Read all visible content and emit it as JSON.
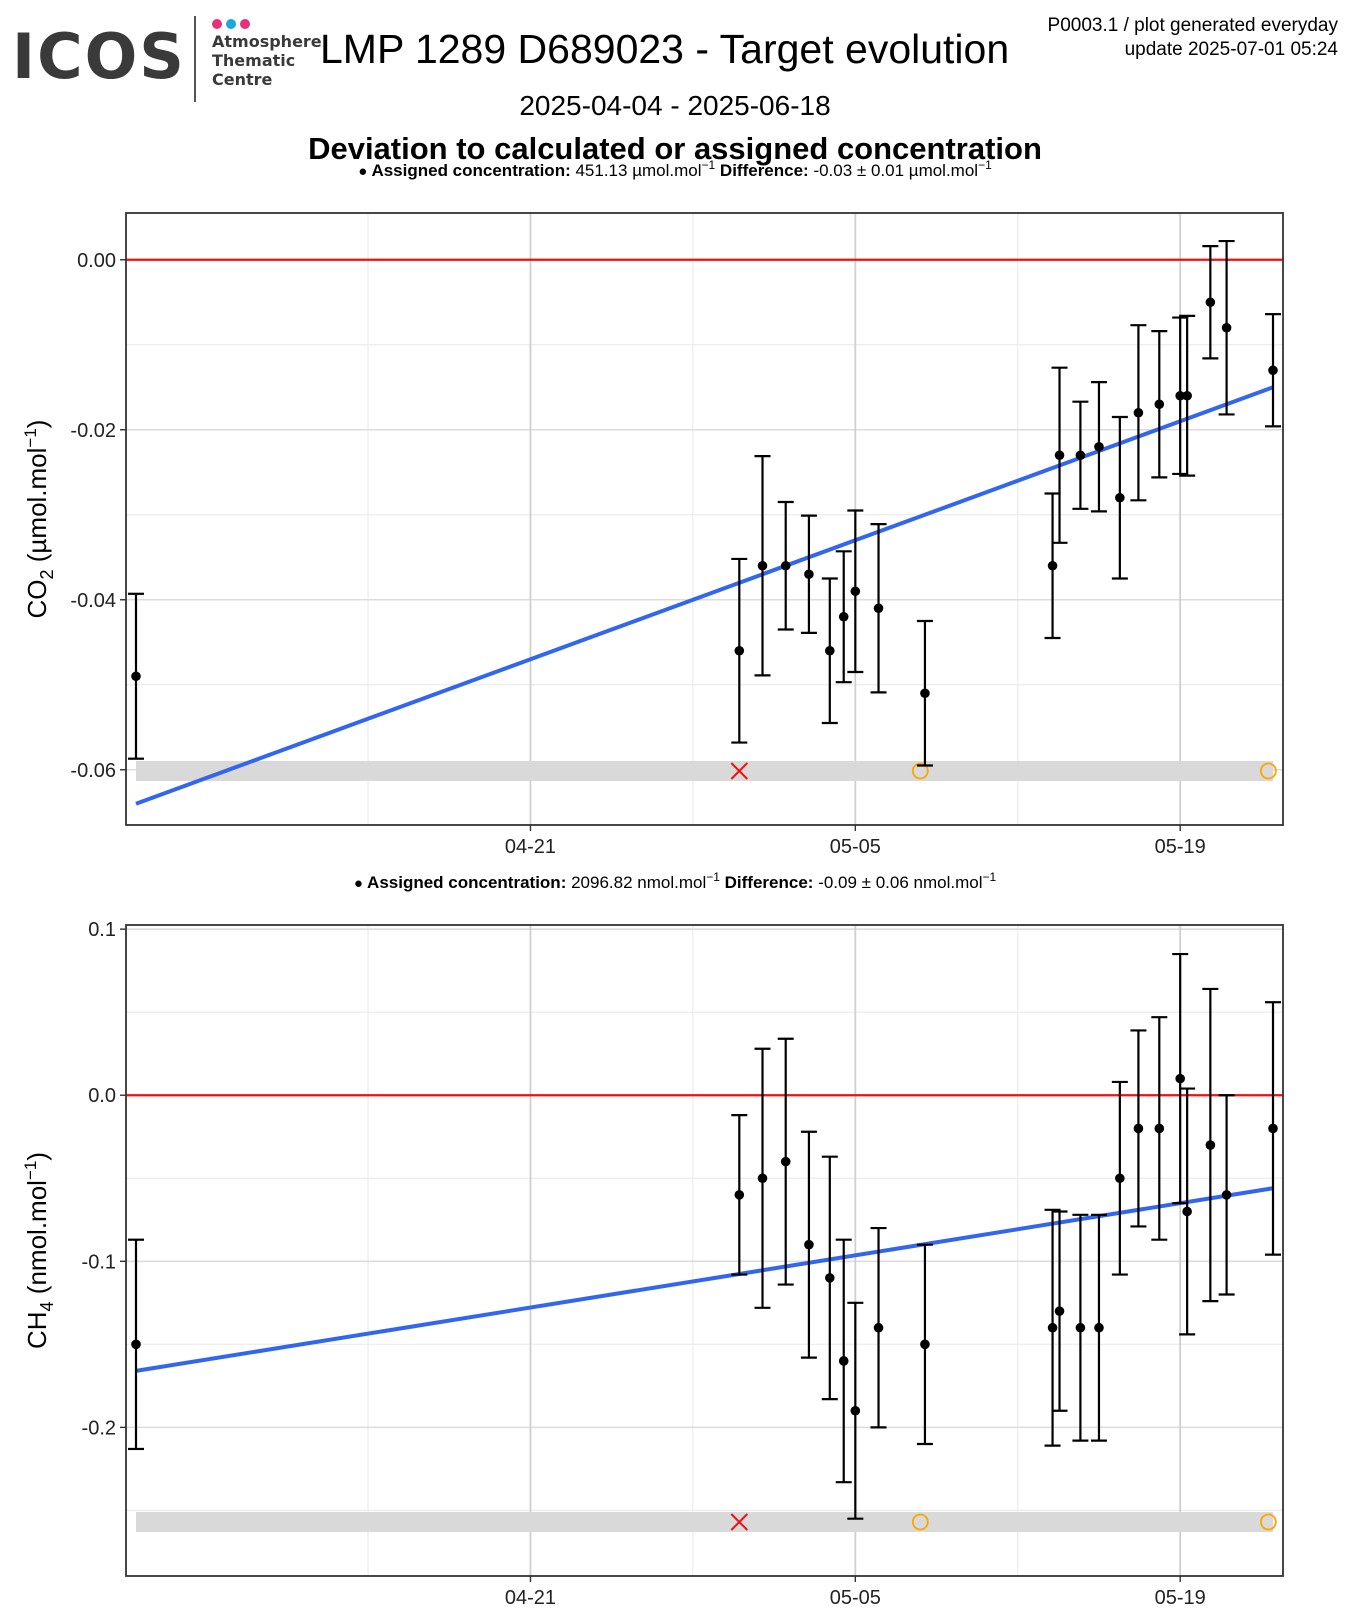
{
  "header": {
    "logo_text": "ICOS",
    "logo_subtitle": [
      "Atmosphere",
      "Thematic",
      "Centre"
    ],
    "logo_dot_colors": [
      "#e6317a",
      "#1aa6e0",
      "#e6317a"
    ],
    "title": "LMP 1289 D689023 - Target evolution",
    "meta_line1": "P0003.1 / plot generated everyday",
    "meta_line2": "update  2025-07-01 05:24",
    "date_range": "2025-04-04 - 2025-06-18",
    "subtitle": "Deviation to calculated or assigned concentration"
  },
  "colors": {
    "fit_line": "#3366ee",
    "reference_line": "#ee1111",
    "flag_band": "#d9d9d9",
    "cross_marker": "#ee1111",
    "circle_marker": "#ffa500",
    "points": "#000000"
  },
  "chart_data": [
    {
      "type": "scatter",
      "gas": "CO2",
      "ylabel": "CO2 (µmol.mol-1)",
      "ylabel_main": "CO",
      "ylabel_sub": "2",
      "ylabel_unit": " (µmol.mol",
      "ylabel_sup": "−1",
      "ylabel_close": ")",
      "legend": {
        "assigned_label": "Assigned concentration:",
        "assigned_value": "451.13 µmol.mol",
        "assigned_sup": "−1",
        "difference_label": "Difference:",
        "difference_value": "-0.03 ± 0.01 µmol.mol",
        "difference_sup": "−1"
      },
      "ylim": [
        -0.0665,
        0.0055
      ],
      "yticks": [
        0.0,
        -0.02,
        -0.04,
        -0.06
      ],
      "ytick_labels": [
        "0.00",
        "-0.02",
        "-0.04",
        "-0.06"
      ],
      "xlim": [
        "2025-04-04",
        "2025-05-23"
      ],
      "xticks": [
        "2025-04-21",
        "2025-05-05",
        "2025-05-19"
      ],
      "xtick_labels": [
        "04-21",
        "05-05",
        "05-19"
      ],
      "reference_y": 0,
      "fit": {
        "x": [
          "2025-04-04",
          "2025-05-23"
        ],
        "y": [
          -0.064,
          -0.015
        ]
      },
      "points": [
        {
          "x": "2025-04-04",
          "y": -0.049,
          "err": 0.0097
        },
        {
          "x": "2025-04-30",
          "y": -0.046,
          "err": 0.0108
        },
        {
          "x": "2025-05-01",
          "y": -0.036,
          "err": 0.0129
        },
        {
          "x": "2025-05-02",
          "y": -0.036,
          "err": 0.0075
        },
        {
          "x": "2025-05-03",
          "y": -0.037,
          "err": 0.0069
        },
        {
          "x": "2025-05-03.9",
          "y": -0.046,
          "err": 0.0085
        },
        {
          "x": "2025-05-04.5",
          "y": -0.042,
          "err": 0.0077
        },
        {
          "x": "2025-05-05",
          "y": -0.039,
          "err": 0.0095
        },
        {
          "x": "2025-05-06",
          "y": -0.041,
          "err": 0.0099
        },
        {
          "x": "2025-05-08",
          "y": -0.051,
          "err": 0.0085
        },
        {
          "x": "2025-05-13.5",
          "y": -0.036,
          "err": 0.0085
        },
        {
          "x": "2025-05-13.8",
          "y": -0.023,
          "err": 0.0103
        },
        {
          "x": "2025-05-14.7",
          "y": -0.023,
          "err": 0.0063
        },
        {
          "x": "2025-05-15.5",
          "y": -0.022,
          "err": 0.0076
        },
        {
          "x": "2025-05-16.4",
          "y": -0.028,
          "err": 0.0095
        },
        {
          "x": "2025-05-17.2",
          "y": -0.018,
          "err": 0.0103
        },
        {
          "x": "2025-05-18.1",
          "y": -0.017,
          "err": 0.0086
        },
        {
          "x": "2025-05-19",
          "y": -0.016,
          "err": 0.0092
        },
        {
          "x": "2025-05-19.3",
          "y": -0.016,
          "err": 0.0094
        },
        {
          "x": "2025-05-20.3",
          "y": -0.005,
          "err": 0.0066
        },
        {
          "x": "2025-05-21",
          "y": -0.008,
          "err": 0.0102
        },
        {
          "x": "2025-05-23",
          "y": -0.013,
          "err": 0.0066
        }
      ],
      "flags": [
        {
          "x": "2025-04-30",
          "symbol": "cross"
        },
        {
          "x": "2025-05-07.8",
          "symbol": "circle"
        },
        {
          "x": "2025-05-22.8",
          "symbol": "circle"
        }
      ]
    },
    {
      "type": "scatter",
      "gas": "CH4",
      "ylabel": "CH4 (nmol.mol-1)",
      "ylabel_main": "CH",
      "ylabel_sub": "4",
      "ylabel_unit": " (nmol.mol",
      "ylabel_sup": "−1",
      "ylabel_close": ")",
      "legend": {
        "assigned_label": "Assigned concentration:",
        "assigned_value": "2096.82 nmol.mol",
        "assigned_sup": "−1",
        "difference_label": "Difference:",
        "difference_value": "-0.09 ± 0.06 nmol.mol",
        "difference_sup": "−1"
      },
      "ylim": [
        -0.2895,
        0.1025
      ],
      "yticks": [
        0.1,
        0.0,
        -0.1,
        -0.2
      ],
      "ytick_labels": [
        "0.1",
        "0.0",
        "-0.1",
        "-0.2"
      ],
      "xlim": [
        "2025-04-04",
        "2025-05-23"
      ],
      "xticks": [
        "2025-04-21",
        "2025-05-05",
        "2025-05-19"
      ],
      "xtick_labels": [
        "04-21",
        "05-05",
        "05-19"
      ],
      "reference_y": 0,
      "fit": {
        "x": [
          "2025-04-04",
          "2025-05-23"
        ],
        "y": [
          -0.166,
          -0.056
        ]
      },
      "points": [
        {
          "x": "2025-04-04",
          "y": -0.15,
          "err": 0.063
        },
        {
          "x": "2025-04-30",
          "y": -0.06,
          "err": 0.048
        },
        {
          "x": "2025-05-01",
          "y": -0.05,
          "err": 0.078
        },
        {
          "x": "2025-05-02",
          "y": -0.04,
          "err": 0.074
        },
        {
          "x": "2025-05-03",
          "y": -0.09,
          "err": 0.068
        },
        {
          "x": "2025-05-03.9",
          "y": -0.11,
          "err": 0.073
        },
        {
          "x": "2025-05-04.5",
          "y": -0.16,
          "err": 0.073
        },
        {
          "x": "2025-05-05",
          "y": -0.19,
          "err": 0.065
        },
        {
          "x": "2025-05-06",
          "y": -0.14,
          "err": 0.06
        },
        {
          "x": "2025-05-08",
          "y": -0.15,
          "err": 0.06
        },
        {
          "x": "2025-05-13.5",
          "y": -0.14,
          "err": 0.071
        },
        {
          "x": "2025-05-13.8",
          "y": -0.13,
          "err": 0.06
        },
        {
          "x": "2025-05-14.7",
          "y": -0.14,
          "err": 0.068
        },
        {
          "x": "2025-05-15.5",
          "y": -0.14,
          "err": 0.068
        },
        {
          "x": "2025-05-16.4",
          "y": -0.05,
          "err": 0.058
        },
        {
          "x": "2025-05-17.2",
          "y": -0.02,
          "err": 0.059
        },
        {
          "x": "2025-05-18.1",
          "y": -0.02,
          "err": 0.067
        },
        {
          "x": "2025-05-19",
          "y": 0.01,
          "err": 0.075
        },
        {
          "x": "2025-05-19.3",
          "y": -0.07,
          "err": 0.074
        },
        {
          "x": "2025-05-20.3",
          "y": -0.03,
          "err": 0.094
        },
        {
          "x": "2025-05-21",
          "y": -0.06,
          "err": 0.06
        },
        {
          "x": "2025-05-23",
          "y": -0.02,
          "err": 0.076
        }
      ],
      "flags": [
        {
          "x": "2025-04-30",
          "symbol": "cross"
        },
        {
          "x": "2025-05-07.8",
          "symbol": "circle"
        },
        {
          "x": "2025-05-22.8",
          "symbol": "circle"
        }
      ]
    }
  ]
}
